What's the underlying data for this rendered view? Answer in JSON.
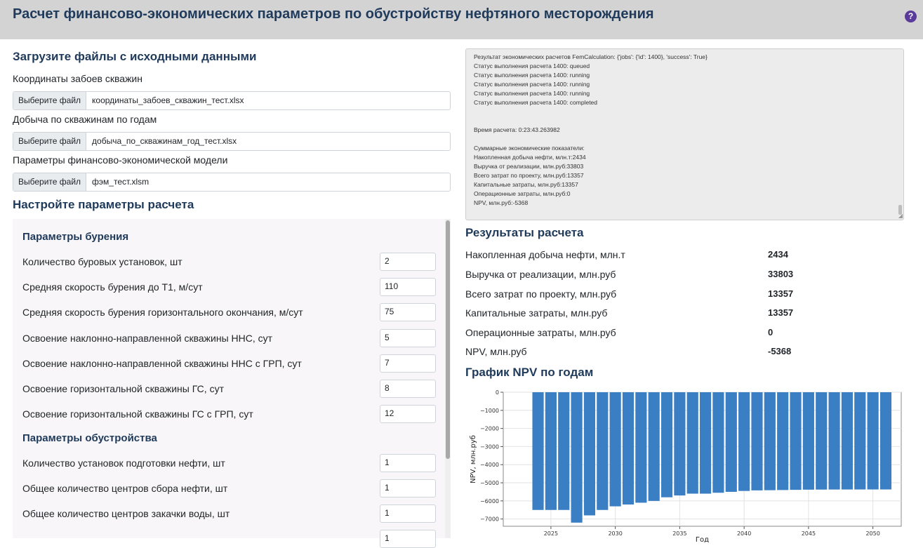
{
  "header": {
    "title": "Расчет финансово-экономических параметров по обустройству нефтяного месторождения",
    "help_icon": "?"
  },
  "upload": {
    "heading": "Загрузите файлы с исходными данными",
    "files": [
      {
        "label": "Координаты забоев скважин",
        "button": "Выберите файл",
        "value": "координаты_забоев_скважин_тест.xlsx"
      },
      {
        "label": "Добыча по скважинам по годам",
        "button": "Выберите файл",
        "value": "добыча_по_скважинам_год_тест.xlsx"
      },
      {
        "label": "Параметры финансово-экономической модели",
        "button": "Выберите файл",
        "value": "фэм_тест.xlsm"
      }
    ]
  },
  "settings": {
    "heading": "Настройте параметры расчета",
    "drilling_heading": "Параметры бурения",
    "drilling": [
      {
        "label": "Количество буровых установок, шт",
        "value": "2"
      },
      {
        "label": "Средняя скорость бурения до Т1, м/сут",
        "value": "110"
      },
      {
        "label": "Средняя скорость бурения горизонтального окончания, м/сут",
        "value": "75"
      },
      {
        "label": "Освоение наклонно-направленной скважины ННС, сут",
        "value": "5"
      },
      {
        "label": "Освоение наклонно-направленной скважины ННС с ГРП, сут",
        "value": "7"
      },
      {
        "label": "Освоение горизонтальной скважины ГС, сут",
        "value": "8"
      },
      {
        "label": "Освоение горизонтальной скважины ГС с ГРП, сут",
        "value": "12"
      }
    ],
    "facilities_heading": "Параметры обустройства",
    "facilities": [
      {
        "label": "Количество установок подготовки нефти, шт",
        "value": "1"
      },
      {
        "label": "Общее количество центров сбора нефти, шт",
        "value": "1"
      },
      {
        "label": "Общее количество центров закачки воды, шт",
        "value": "1"
      },
      {
        "label": "",
        "value": "1"
      }
    ]
  },
  "log": {
    "lines": [
      "Результат экономических расчетов FemCalculation: {'jobs': {'id': 1400}, 'success': True}",
      "Статус выполнения расчета 1400: queued",
      "Статус выполнения расчета 1400: running",
      "Статус выполнения расчета 1400: running",
      "Статус выполнения расчета 1400: running",
      "Статус выполнения расчета 1400: completed",
      "",
      "",
      "Время расчета: 0:23:43.263982",
      "",
      "Суммарные экономические показатели:",
      "Накопленная добыча нефти, млн.т:2434",
      "Выручка от реализации, млн.руб:33803",
      "Всего затрат по проекту, млн.руб:13357",
      "Капитальные затраты, млн.руб:13357",
      "Операционные затраты, млн.руб:0",
      "NPV, млн.руб:-5368"
    ]
  },
  "results": {
    "heading": "Результаты расчета",
    "rows": [
      {
        "label": "Накопленная добыча нефти, млн.т",
        "value": "2434"
      },
      {
        "label": "Выручка от реализации, млн.руб",
        "value": "33803"
      },
      {
        "label": "Всего затрат по проекту, млн.руб",
        "value": "13357"
      },
      {
        "label": "Капитальные затраты, млн.руб",
        "value": "13357"
      },
      {
        "label": "Операционные затраты, млн.руб",
        "value": "0"
      },
      {
        "label": "NPV, млн.руб",
        "value": "-5368"
      }
    ]
  },
  "chart_heading": "График NPV по годам",
  "chart_data": {
    "type": "bar",
    "title": "",
    "xlabel": "Год",
    "ylabel": "NPV, млн.руб",
    "bar_color": "#3a7ec4",
    "grid": true,
    "ylim": [
      -7400,
      0
    ],
    "xlim": [
      2021.3,
      2052.2
    ],
    "yticks": [
      0,
      -1000,
      -2000,
      -3000,
      -4000,
      -5000,
      -6000,
      -7000
    ],
    "xticks": [
      2025,
      2030,
      2035,
      2040,
      2045,
      2050
    ],
    "x": [
      2024,
      2025,
      2026,
      2027,
      2028,
      2029,
      2030,
      2031,
      2032,
      2033,
      2034,
      2035,
      2036,
      2037,
      2038,
      2039,
      2040,
      2041,
      2042,
      2043,
      2044,
      2045,
      2046,
      2047,
      2048,
      2049,
      2050,
      2051
    ],
    "values": [
      -6500,
      -6500,
      -6500,
      -7200,
      -6800,
      -6500,
      -6300,
      -6200,
      -6100,
      -6000,
      -5800,
      -5700,
      -5600,
      -5600,
      -5550,
      -5500,
      -5450,
      -5420,
      -5410,
      -5400,
      -5390,
      -5380,
      -5375,
      -5372,
      -5370,
      -5369,
      -5368,
      -5368
    ]
  }
}
